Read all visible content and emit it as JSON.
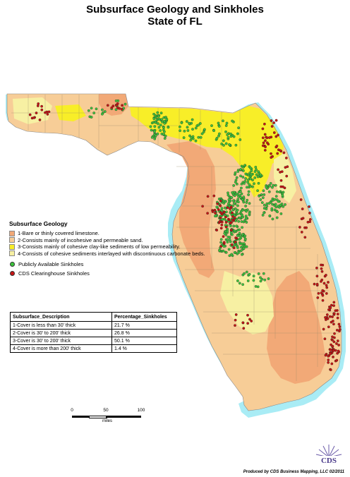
{
  "title": "Subsurface Geology and Sinkholes",
  "subtitle": "State of FL",
  "colors": {
    "water": "#a9ecf5",
    "zone1": "#f2a977",
    "zone2": "#f7cd97",
    "zone3": "#f8ee28",
    "zone4": "#f7f0a3",
    "public_sinkhole": "#3cc63c",
    "cds_sinkhole": "#c81414"
  },
  "legend": {
    "title": "Subsurface Geology",
    "geology": [
      {
        "label": "1-Bare or thinly covered limestone.",
        "color": "#f2a977"
      },
      {
        "label": "2-Consists mainly of incohesive and permeable sand.",
        "color": "#f7cd97"
      },
      {
        "label": "3-Consists mainly of cohesive clay-like sediments of low permeability.",
        "color": "#f8ee28"
      },
      {
        "label": "4-Consists of cohesive sediments interlayed with discontinuous carbonate beds.",
        "color": "#f7f0a3"
      }
    ],
    "sinkholes": [
      {
        "label": "Publicly Available Sinkholes",
        "color": "#3cc63c"
      },
      {
        "label": "CDS Clearinghouse Sinkholes",
        "color": "#c81414"
      }
    ]
  },
  "table": {
    "headers": [
      "Subsurface_Description",
      "Percentage_Sinkholes"
    ],
    "rows": [
      [
        "1-Cover is less than 30' thick",
        "21.7 %"
      ],
      [
        "2-Cover is 30' to 200' thick",
        "26.8 %"
      ],
      [
        "3-Cover is 30' to 200' thick",
        "50.1 %"
      ],
      [
        "4-Cover is more than 200' thick",
        "1.4 %"
      ]
    ]
  },
  "scalebar": {
    "ticks": [
      "0",
      "50",
      "100"
    ],
    "units": "miles"
  },
  "logo_text": "CDS",
  "credit": "Produced by CDS Business Mapping, LLC 02/2011"
}
